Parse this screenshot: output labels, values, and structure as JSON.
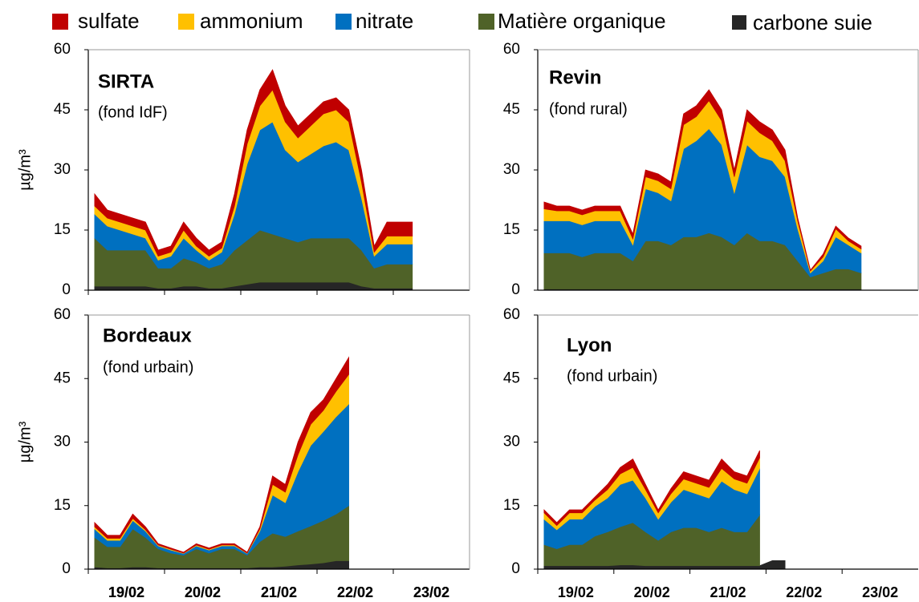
{
  "legend": [
    {
      "name": "sulfate",
      "color": "#c00000"
    },
    {
      "name": "ammonium",
      "color": "#ffc000"
    },
    {
      "name": "nitrate",
      "color": "#0070c0"
    },
    {
      "name": "Matière organique",
      "color": "#4f6228"
    },
    {
      "name": "carbone suie",
      "color": "#262626"
    }
  ],
  "chart_data": [
    {
      "type": "stacked-area",
      "title": "SIRTA",
      "subtitle": "(fond IdF)",
      "ylabel": "µg/m³",
      "ylim": [
        0,
        60
      ],
      "yticks": [
        0,
        15,
        30,
        45,
        60
      ],
      "categories": [
        null,
        null,
        null,
        "19/02",
        null,
        null,
        null,
        null,
        null,
        "20/02",
        null,
        null,
        null,
        null,
        null,
        "21/02",
        null,
        null,
        null,
        null,
        null,
        "22/02",
        null,
        null,
        null,
        null,
        null,
        "23/02",
        null,
        null
      ],
      "series": [
        {
          "values": [
            3,
            2,
            2,
            2,
            2,
            1.5,
            1.5,
            2,
            2,
            1.5,
            1.5,
            3,
            3.5,
            4,
            5,
            4,
            3,
            3,
            3,
            3,
            3,
            3,
            1.5,
            3.5,
            3.5,
            3.5,
            null,
            null,
            null,
            null
          ]
        },
        {
          "values": [
            2,
            2,
            2,
            2,
            2,
            1,
            1,
            2,
            1,
            1,
            1,
            2,
            5,
            6,
            8,
            7,
            6,
            7,
            8,
            8,
            7,
            4,
            1,
            2,
            2,
            2,
            null,
            null,
            null,
            null
          ]
        },
        {
          "values": [
            6,
            6,
            5,
            4,
            3,
            2,
            3,
            5,
            3,
            2,
            3,
            9,
            19,
            25,
            28,
            22,
            20,
            21,
            23,
            24,
            22,
            13,
            3,
            5,
            5,
            5,
            null,
            null,
            null,
            null
          ]
        },
        {
          "values": [
            12,
            9,
            9,
            9,
            9,
            5,
            5,
            7,
            6,
            5,
            6,
            9,
            11,
            13,
            12,
            11,
            10,
            11,
            11,
            11,
            11,
            9,
            5,
            6,
            6,
            6,
            null,
            null,
            null,
            null
          ]
        },
        {
          "values": [
            1,
            1,
            1,
            1,
            1,
            0.5,
            0.5,
            1,
            1,
            0.5,
            0.5,
            1,
            1.5,
            2,
            2,
            2,
            2,
            2,
            2,
            2,
            2,
            1,
            0.5,
            0.5,
            0.5,
            0.5,
            null,
            null,
            null,
            null
          ]
        }
      ]
    },
    {
      "type": "stacked-area",
      "title": "Revin",
      "subtitle": "(fond rural)",
      "ylim": [
        0,
        60
      ],
      "yticks": [
        0,
        15,
        30,
        45,
        60
      ],
      "categories": [
        null,
        null,
        null,
        null,
        null,
        null,
        null,
        null,
        null,
        null,
        null,
        null,
        null,
        null,
        null,
        null,
        null,
        null,
        null,
        null,
        null,
        null,
        null,
        null,
        null,
        null,
        null,
        null,
        null,
        null
      ],
      "series": [
        {
          "values": [
            1.7,
            1.2,
            1.2,
            1.2,
            1.2,
            1.2,
            1.2,
            1.2,
            1.7,
            1.7,
            1.7,
            2.7,
            2.7,
            2.7,
            2.7,
            1.7,
            2.7,
            2.7,
            2.7,
            2.7,
            0.7,
            0.2,
            0.7,
            0.7,
            0.7,
            0.7,
            null,
            null,
            null,
            null
          ]
        },
        {
          "values": [
            3,
            2.5,
            2.5,
            2.5,
            2.5,
            2.5,
            2.5,
            1.5,
            3,
            3,
            3,
            6,
            6,
            7,
            6,
            4,
            6,
            6,
            5,
            4,
            2,
            0.5,
            1,
            2,
            1,
            1,
            null,
            null,
            null,
            null
          ]
        },
        {
          "values": [
            8,
            8,
            8,
            8,
            8,
            8,
            8,
            4,
            13,
            12,
            11,
            22,
            24,
            26,
            23,
            13,
            22,
            21,
            20,
            17,
            8,
            1,
            3,
            8,
            6,
            5,
            null,
            null,
            null,
            null
          ]
        },
        {
          "values": [
            9,
            9,
            9,
            8,
            9,
            9,
            9,
            7,
            12,
            12,
            11,
            13,
            13,
            14,
            13,
            11,
            14,
            12,
            12,
            11,
            7,
            3,
            4,
            5,
            5,
            4,
            null,
            null,
            null,
            null
          ]
        },
        {
          "values": [
            0.3,
            0.3,
            0.3,
            0.3,
            0.3,
            0.3,
            0.3,
            0.3,
            0.3,
            0.3,
            0.3,
            0.3,
            0.3,
            0.3,
            0.3,
            0.3,
            0.3,
            0.3,
            0.3,
            0.3,
            0.3,
            0.3,
            0.3,
            0.3,
            0.3,
            0.3,
            null,
            null,
            null,
            null
          ]
        }
      ]
    },
    {
      "type": "stacked-area",
      "title": "Bordeaux",
      "subtitle": "(fond urbain)",
      "ylabel": "µg/m³",
      "ylim": [
        0,
        60
      ],
      "yticks": [
        0,
        15,
        30,
        45,
        60
      ],
      "categories": [
        null,
        null,
        null,
        "19/02",
        null,
        null,
        null,
        null,
        null,
        "20/02",
        null,
        null,
        null,
        null,
        null,
        "21/02",
        null,
        null,
        null,
        null,
        null,
        "22/02",
        null,
        null,
        null,
        null,
        null,
        "23/02",
        null,
        null
      ],
      "series": [
        {
          "values": [
            1,
            0.7,
            0.7,
            1,
            0.7,
            0.3,
            0.3,
            0.2,
            0.3,
            0.3,
            0.3,
            0.3,
            0.2,
            0.5,
            2,
            1.8,
            3,
            2.8,
            2.5,
            3,
            4,
            null,
            null,
            null,
            null,
            null,
            null,
            null,
            null,
            null
          ]
        },
        {
          "values": [
            0.5,
            0.5,
            0.5,
            0.5,
            0.3,
            0.2,
            0.2,
            0.1,
            0.2,
            0.2,
            0.2,
            0.2,
            0.1,
            0.5,
            2.5,
            2.5,
            4,
            5,
            5,
            6,
            7,
            null,
            null,
            null,
            null,
            null,
            null,
            null,
            null,
            null
          ]
        },
        {
          "values": [
            2,
            1.5,
            1.5,
            2,
            1.5,
            0.7,
            0.7,
            0.4,
            0.7,
            0.7,
            0.7,
            0.7,
            0.4,
            2.5,
            9,
            8,
            14,
            19,
            21,
            23,
            24,
            null,
            null,
            null,
            null,
            null,
            null,
            null,
            null,
            null
          ]
        },
        {
          "values": [
            7,
            5,
            5,
            9,
            7,
            4.5,
            3.5,
            3,
            4.5,
            3.5,
            4.5,
            4.5,
            3,
            6,
            8,
            7,
            8,
            9,
            10,
            11,
            13,
            null,
            null,
            null,
            null,
            null,
            null,
            null,
            null,
            null
          ]
        },
        {
          "values": [
            0.5,
            0.3,
            0.3,
            0.5,
            0.5,
            0.3,
            0.3,
            0.3,
            0.3,
            0.3,
            0.3,
            0.3,
            0.3,
            0.5,
            0.5,
            0.7,
            1,
            1.2,
            1.5,
            2,
            2,
            null,
            null,
            null,
            null,
            null,
            null,
            null,
            null,
            null
          ]
        }
      ]
    },
    {
      "type": "stacked-area",
      "title": "Lyon",
      "subtitle": "(fond urbain)",
      "ylim": [
        0,
        60
      ],
      "yticks": [
        0,
        15,
        30,
        45,
        60
      ],
      "categories": [
        null,
        null,
        null,
        "19/02",
        null,
        null,
        null,
        null,
        null,
        "20/02",
        null,
        null,
        null,
        null,
        null,
        "21/02",
        null,
        null,
        null,
        null,
        null,
        "22/02",
        null,
        null,
        null,
        null,
        null,
        "23/02",
        null,
        null
      ],
      "series": [
        {
          "values": [
            0.7,
            0.7,
            0.7,
            0.7,
            0.7,
            1.2,
            1.5,
            2,
            1.2,
            0.7,
            1.2,
            1.7,
            1.7,
            1.7,
            2.2,
            1.7,
            1.7,
            1.7,
            null,
            null,
            null,
            null,
            null,
            null,
            null,
            null,
            null,
            null,
            null,
            null
          ]
        },
        {
          "values": [
            1.5,
            1,
            1.5,
            1.5,
            1.5,
            2,
            2.5,
            3,
            2,
            1.5,
            2,
            2.5,
            2.5,
            2.5,
            3,
            2.5,
            2.5,
            2.5,
            null,
            null,
            null,
            null,
            null,
            null,
            null,
            null,
            null,
            null,
            null,
            null
          ]
        },
        {
          "values": [
            6,
            4.5,
            6,
            6,
            7,
            8,
            10,
            10,
            8,
            5,
            7,
            9,
            8,
            8,
            11,
            10,
            9,
            11,
            null,
            null,
            null,
            null,
            null,
            null,
            null,
            null,
            null,
            null,
            null,
            null
          ]
        },
        {
          "values": [
            5,
            4,
            5,
            5,
            7,
            8,
            9,
            10,
            8,
            6,
            8,
            9,
            9,
            8,
            9,
            8,
            8,
            12,
            null,
            null,
            null,
            null,
            null,
            null,
            null,
            null,
            null,
            null,
            null,
            null
          ]
        },
        {
          "values": [
            0.8,
            0.8,
            0.8,
            0.8,
            0.8,
            0.8,
            1,
            1,
            0.8,
            0.8,
            0.8,
            0.8,
            0.8,
            0.8,
            0.8,
            0.8,
            0.8,
            0.8,
            2,
            2,
            null,
            null,
            null,
            null,
            null,
            null,
            null,
            null,
            null,
            null
          ]
        }
      ]
    }
  ]
}
